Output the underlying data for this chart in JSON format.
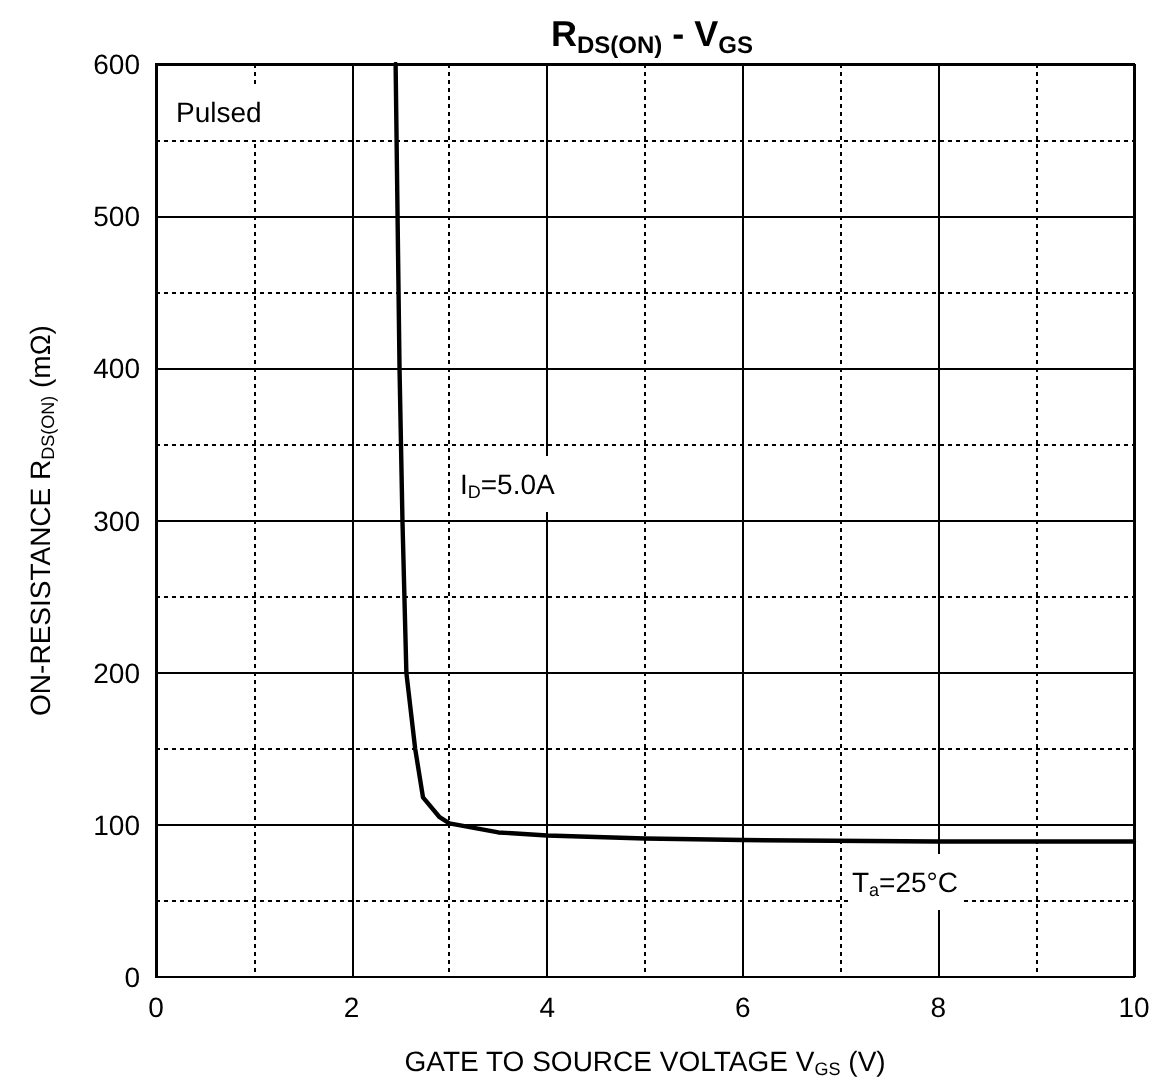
{
  "chart_data": {
    "type": "line",
    "title": "R$_{DS(ON)}$ - V$_{GS}$",
    "xlabel": "GATE TO SOURCE VOLTAGE V$_{GS}$ (V)",
    "ylabel": "ON-RESISTANCE R$_{DS(ON)}$ (mΩ)",
    "annotations": [
      "Pulsed",
      "I$_{D}$=5.0A",
      "T$_{a}$=25°C"
    ],
    "x": [
      2.45,
      2.49,
      2.52,
      2.56,
      2.65,
      2.73,
      2.9,
      3,
      3.5,
      4,
      5,
      6,
      8,
      10
    ],
    "series": [
      {
        "color": "#000000",
        "values": [
          600,
          400,
          300,
          200,
          150,
          118,
          105,
          101,
          95,
          93,
          91,
          90,
          89,
          89
        ]
      }
    ],
    "xlim": [
      0,
      10
    ],
    "ylim": [
      0,
      600
    ],
    "xticks": [
      0,
      2,
      4,
      6,
      8,
      10
    ],
    "yticks": [
      0,
      100,
      200,
      300,
      400,
      500,
      600
    ],
    "grid": true,
    "marker": "none",
    "line_style": "solid"
  }
}
